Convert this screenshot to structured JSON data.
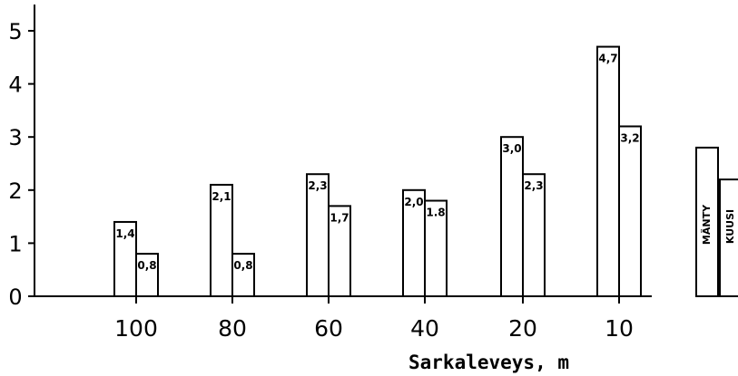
{
  "chart_data": {
    "type": "bar",
    "categories": [
      "100",
      "80",
      "60",
      "40",
      "20",
      "10"
    ],
    "series": [
      {
        "name": "MÄNTY",
        "values": [
          1.4,
          2.1,
          2.3,
          2.0,
          3.0,
          4.7
        ],
        "labels": [
          "1,4",
          "2,1",
          "2,3",
          "2,0",
          "3,0",
          "4,7"
        ]
      },
      {
        "name": "KUUSI",
        "values": [
          0.8,
          0.8,
          1.7,
          1.8,
          2.3,
          3.2
        ],
        "labels": [
          "0,8",
          "0,8",
          "1,7",
          "1.8",
          "2,3",
          "3,2"
        ]
      }
    ],
    "xlabel": "Sarkaleveys, m",
    "ylabel": "",
    "ylim": [
      0,
      5
    ],
    "yticks": [
      "0",
      "1",
      "2",
      "3",
      "4",
      "5"
    ],
    "grid": false,
    "legend_position": "right",
    "colors": {
      "bar_fill": "#ffffff",
      "bar_stroke": "#000000",
      "text": "#000000"
    }
  }
}
